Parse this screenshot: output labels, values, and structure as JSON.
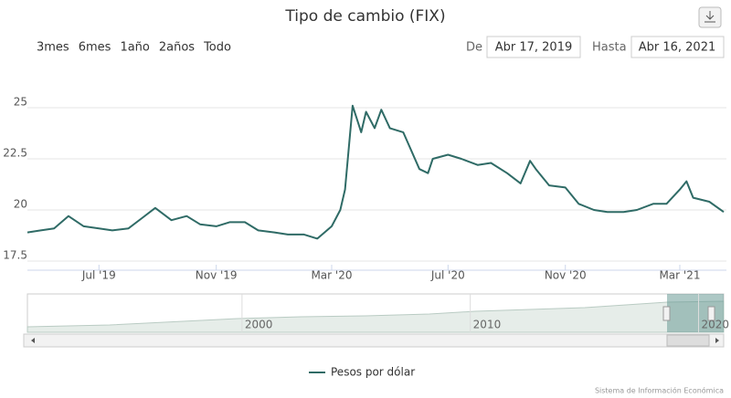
{
  "chart_data": {
    "type": "line",
    "title": "Tipo de cambio (FIX)",
    "range_buttons": [
      "3mes",
      "6mes",
      "1año",
      "2años",
      "Todo"
    ],
    "from_label": "De",
    "from_date": "Abr 17, 2019",
    "to_label": "Hasta",
    "to_date": "Abr 16, 2021",
    "xlim": [
      "2019-04-17",
      "2021-04-16"
    ],
    "xticks": [
      {
        "value": "2019-07-01",
        "label": "Jul '19"
      },
      {
        "value": "2019-11-01",
        "label": "Nov '19"
      },
      {
        "value": "2020-03-01",
        "label": "Mar '20"
      },
      {
        "value": "2020-07-01",
        "label": "Jul '20"
      },
      {
        "value": "2020-11-01",
        "label": "Nov '20"
      },
      {
        "value": "2021-03-01",
        "label": "Mar '21"
      }
    ],
    "ylim": [
      17.5,
      26
    ],
    "yticks": [
      17.5,
      20,
      22.5,
      25
    ],
    "grid": true,
    "x": [
      "2019-04-17",
      "2019-05-01",
      "2019-05-15",
      "2019-05-30",
      "2019-06-15",
      "2019-07-01",
      "2019-07-15",
      "2019-08-01",
      "2019-08-15",
      "2019-08-29",
      "2019-09-15",
      "2019-10-01",
      "2019-10-15",
      "2019-11-01",
      "2019-11-15",
      "2019-12-01",
      "2019-12-15",
      "2020-01-01",
      "2020-01-15",
      "2020-02-01",
      "2020-02-15",
      "2020-03-01",
      "2020-03-10",
      "2020-03-15",
      "2020-03-23",
      "2020-04-01",
      "2020-04-06",
      "2020-04-15",
      "2020-04-22",
      "2020-05-01",
      "2020-05-15",
      "2020-06-01",
      "2020-06-10",
      "2020-06-15",
      "2020-07-01",
      "2020-07-15",
      "2020-08-01",
      "2020-08-15",
      "2020-09-01",
      "2020-09-15",
      "2020-09-25",
      "2020-10-01",
      "2020-10-15",
      "2020-11-01",
      "2020-11-15",
      "2020-12-01",
      "2020-12-15",
      "2021-01-01",
      "2021-01-15",
      "2021-02-01",
      "2021-02-15",
      "2021-03-01",
      "2021-03-08",
      "2021-03-15",
      "2021-04-01",
      "2021-04-16"
    ],
    "series": [
      {
        "name": "Pesos por dólar",
        "color": "#2f6b66",
        "values": [
          18.9,
          19.0,
          19.1,
          19.7,
          19.2,
          19.1,
          19.0,
          19.1,
          19.6,
          20.1,
          19.5,
          19.7,
          19.3,
          19.2,
          19.4,
          19.4,
          19.0,
          18.9,
          18.8,
          18.8,
          18.6,
          19.2,
          20.0,
          21.0,
          25.1,
          23.8,
          24.8,
          24.0,
          24.9,
          24.0,
          23.8,
          22.0,
          21.8,
          22.5,
          22.7,
          22.5,
          22.2,
          22.3,
          21.8,
          21.3,
          22.4,
          22.0,
          21.2,
          21.1,
          20.3,
          20.0,
          19.9,
          19.9,
          20.0,
          20.3,
          20.3,
          21.0,
          21.4,
          20.6,
          20.4,
          19.9
        ]
      }
    ],
    "navigator": {
      "xlim": [
        1990.6,
        2021.1
      ],
      "xticks": [
        2000,
        2010,
        2020
      ]
    },
    "credits": "Sistema de Información Económica"
  }
}
